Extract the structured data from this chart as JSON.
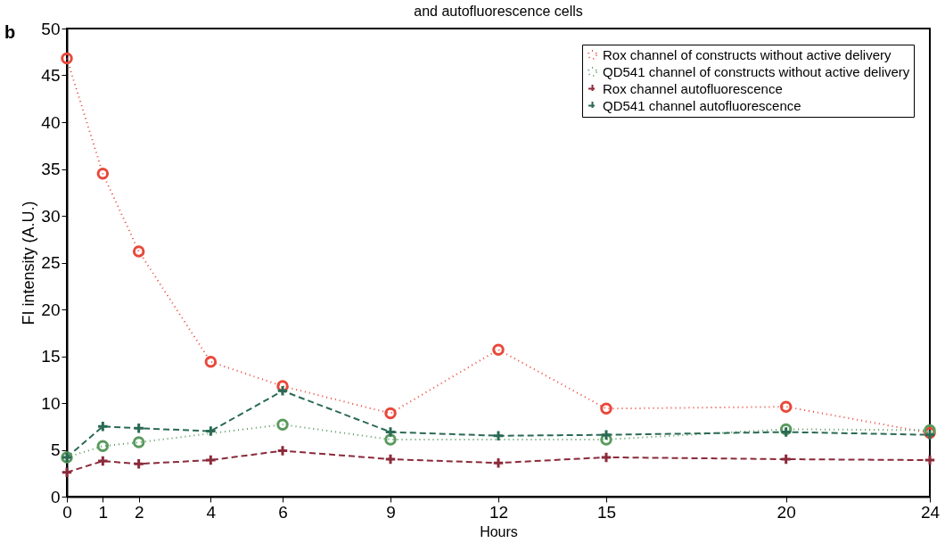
{
  "chart_data": {
    "type": "line",
    "title": "and autofluorescence cells",
    "xlabel": "Hours",
    "ylabel": "FI intensity (A.U.)",
    "annotations": [
      "b"
    ],
    "x": [
      0,
      1,
      2,
      4,
      6,
      9,
      12,
      15,
      20,
      24
    ],
    "series": [
      {
        "name": "Rox channel of constructs without active delivery",
        "color": "#e8483a",
        "marker": "circle",
        "line_style": "dotted",
        "values": [
          46.8,
          34.5,
          26.2,
          14.4,
          11.8,
          8.9,
          15.7,
          9.4,
          9.6,
          6.8
        ]
      },
      {
        "name": "QD541 channel of constructs without active delivery",
        "color": "#5a9a5e",
        "marker": "circle",
        "line_style": "dotted",
        "values": [
          4.2,
          5.4,
          5.8,
          null,
          7.7,
          6.1,
          null,
          6.1,
          7.2,
          7.1
        ]
      },
      {
        "name": "Rox channel autofluorescence",
        "color": "#8b2a3a",
        "marker": "cross",
        "line_style": "dashed",
        "values": [
          2.6,
          3.8,
          3.5,
          3.9,
          4.9,
          4.0,
          3.6,
          4.2,
          4.0,
          3.9
        ]
      },
      {
        "name": "QD541 channel autofluorescence",
        "color": "#2a6a55",
        "marker": "cross",
        "line_style": "dashed",
        "values": [
          4.2,
          7.5,
          7.3,
          7.0,
          11.3,
          6.9,
          6.5,
          6.6,
          6.9,
          6.6
        ]
      }
    ],
    "xlim": [
      0,
      24
    ],
    "xticks": [
      0,
      1,
      2,
      4,
      6,
      9,
      12,
      15,
      20,
      24
    ],
    "ylim": [
      0,
      50
    ],
    "yticks": [
      0,
      5,
      10,
      15,
      20,
      25,
      30,
      35,
      40,
      45,
      50
    ],
    "grid": false,
    "legend": "top right"
  }
}
